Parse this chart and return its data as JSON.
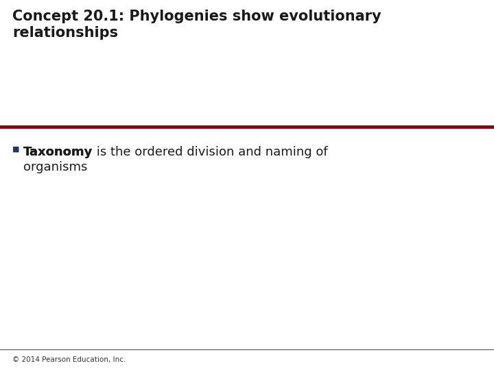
{
  "title_text": "Concept 20.1: Phylogenies show evolutionary\nrelationships",
  "title_color": "#1a1a1a",
  "title_fontsize": 15,
  "red_line_color": "#8B0000",
  "red_line_thickness": 3.5,
  "bullet_symbol": "■",
  "bullet_color": "#1F3864",
  "body_bold_text": "Taxonomy",
  "body_bold_color": "#1a1a1a",
  "body_normal_text": " is the ordered division and naming of",
  "body_line2_text": "organisms",
  "body_color": "#1a1a1a",
  "body_fontsize": 13,
  "footer_line_color": "#555555",
  "footer_text": "© 2014 Pearson Education, Inc.",
  "footer_color": "#333333",
  "footer_fontsize": 7.5,
  "bg_color": "#ffffff"
}
